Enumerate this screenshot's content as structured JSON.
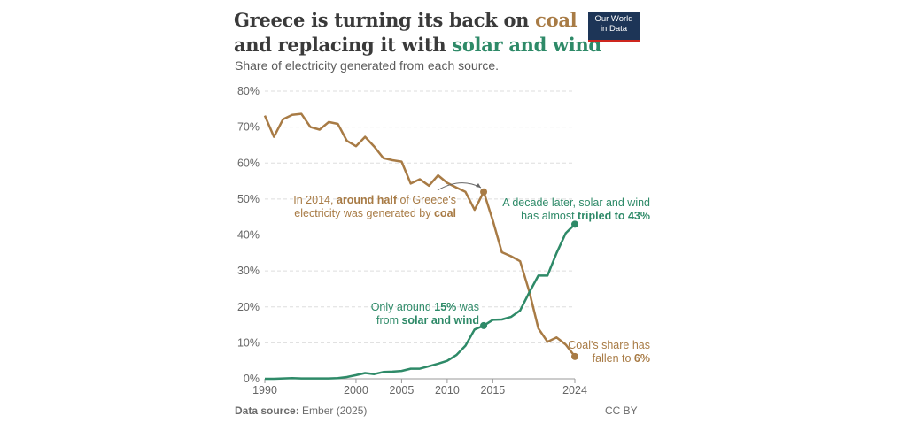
{
  "header": {
    "title_part1": "Greece is turning its back on ",
    "title_coal": "coal",
    "title_part2": "and replacing it with ",
    "title_solar_wind": "solar and wind",
    "subtitle": "Share of electricity generated from each source.",
    "logo_line1": "Our World",
    "logo_line2": "in Data"
  },
  "footer": {
    "source_label": "Data source:",
    "source_value": " Ember (2025)",
    "license": "CC BY"
  },
  "annotations": {
    "coal_2014": [
      "In 2014, ",
      "around half",
      " of Greece's",
      "electricity was generated by ",
      "coal"
    ],
    "sw_2014": [
      "Only around ",
      "15%",
      " was",
      "from ",
      "solar and wind"
    ],
    "sw_2024": [
      "A decade later, solar and wind",
      "has almost ",
      "tripled to 43%"
    ],
    "coal_2024": [
      "Coal's share has",
      "fallen to ",
      "6%"
    ]
  },
  "chart_data": {
    "type": "line",
    "title": "Greece is turning its back on coal and replacing it with solar and wind",
    "subtitle": "Share of electricity generated from each source.",
    "xlim": [
      1990,
      2024
    ],
    "ylim": [
      0,
      80
    ],
    "x_ticks": [
      1990,
      2000,
      2005,
      2010,
      2015,
      2024
    ],
    "y_ticks": [
      "0%",
      "10%",
      "20%",
      "30%",
      "40%",
      "50%",
      "60%",
      "70%",
      "80%"
    ],
    "grid": "horizontal dashed",
    "colors": {
      "coal": "#a87b45",
      "solar_wind": "#2e8a68"
    },
    "x": [
      1990,
      1991,
      1992,
      1993,
      1994,
      1995,
      1996,
      1997,
      1998,
      1999,
      2000,
      2001,
      2002,
      2003,
      2004,
      2005,
      2006,
      2007,
      2008,
      2009,
      2010,
      2011,
      2012,
      2013,
      2014,
      2015,
      2016,
      2017,
      2018,
      2019,
      2020,
      2021,
      2022,
      2023,
      2024
    ],
    "series": [
      {
        "key": "coal",
        "values": [
          73.2,
          67.3,
          72.2,
          73.4,
          73.7,
          70.0,
          69.3,
          71.4,
          70.9,
          66.2,
          64.7,
          67.3,
          64.6,
          61.4,
          60.8,
          60.4,
          54.3,
          55.5,
          53.7,
          56.6,
          54.5,
          53.2,
          52.0,
          47.0,
          52.0,
          44.0,
          35.2,
          34.1,
          32.7,
          24.3,
          14.0,
          10.3,
          11.5,
          9.5,
          6.2
        ]
      },
      {
        "key": "solar_wind",
        "values": [
          0.0,
          0.0,
          0.1,
          0.2,
          0.1,
          0.1,
          0.1,
          0.1,
          0.2,
          0.5,
          1.0,
          1.6,
          1.3,
          1.9,
          2.0,
          2.2,
          2.8,
          2.8,
          3.5,
          4.2,
          5.0,
          6.6,
          9.2,
          13.7,
          14.8,
          16.4,
          16.5,
          17.2,
          19.0,
          24.0,
          28.7,
          28.7,
          35.0,
          40.5,
          43.0
        ]
      }
    ]
  }
}
